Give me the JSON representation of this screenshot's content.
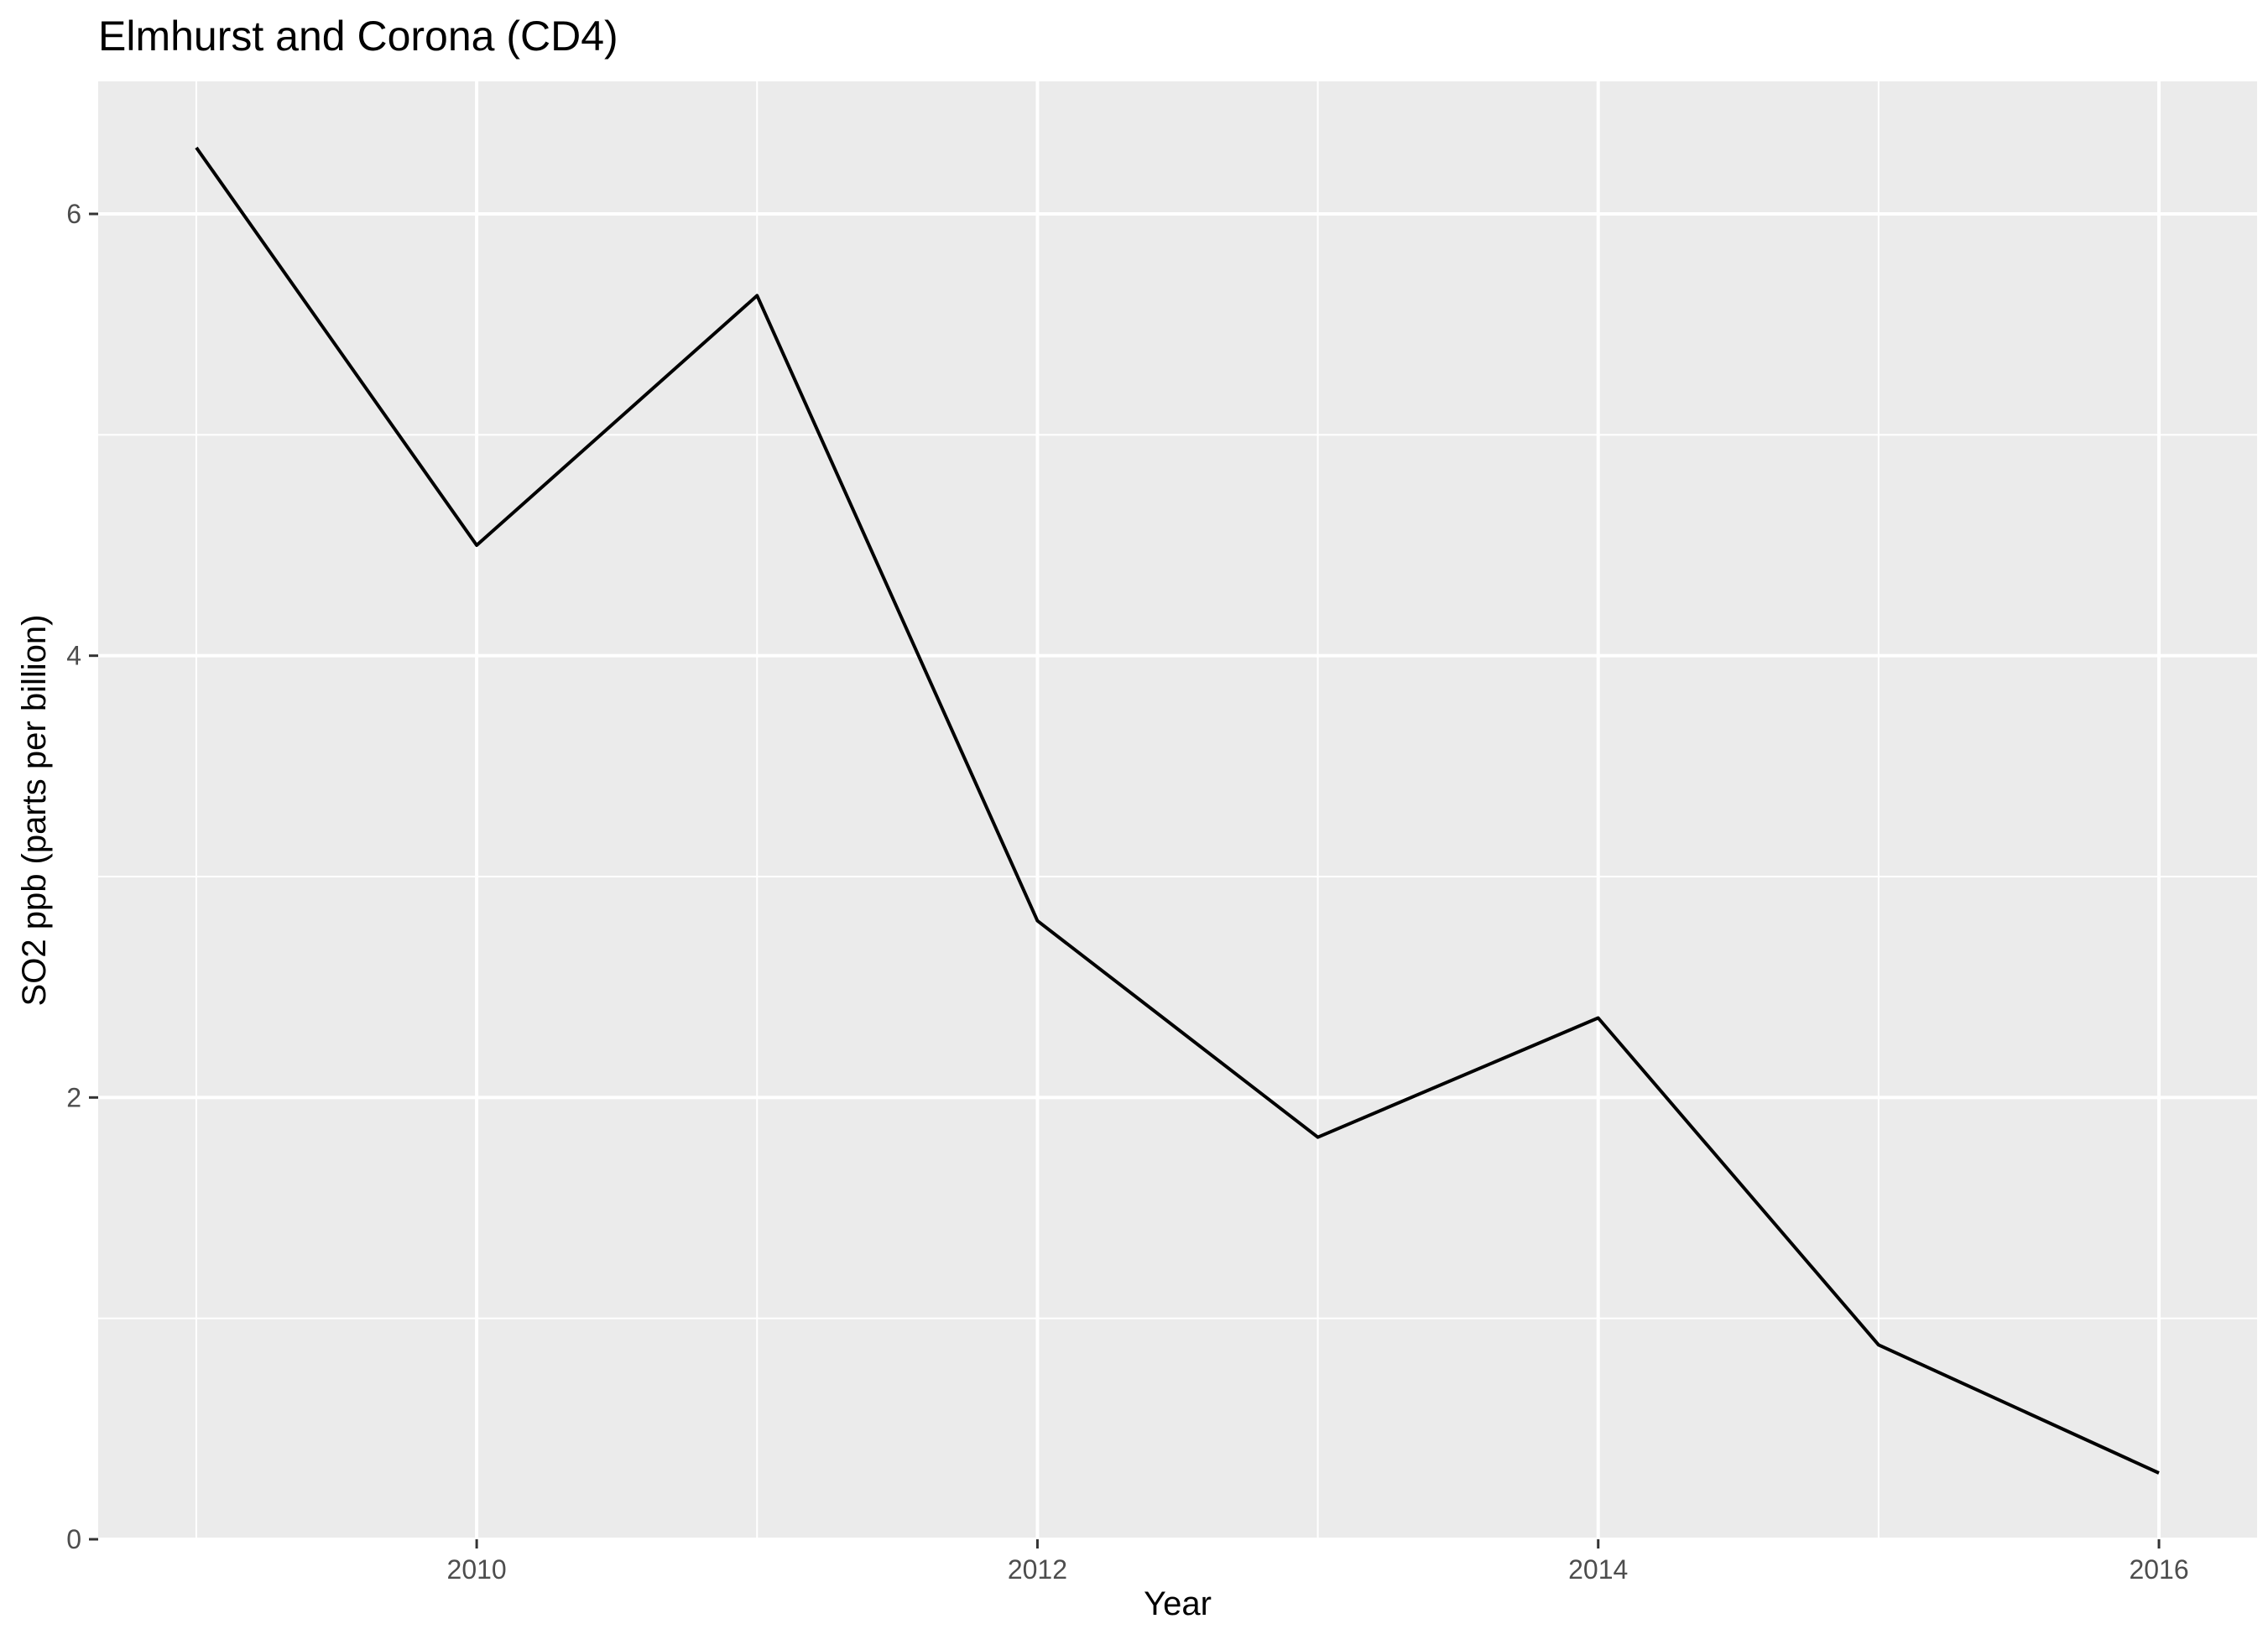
{
  "chart_data": {
    "type": "line",
    "title": "Elmhurst and Corona (CD4)",
    "xlabel": "Year",
    "ylabel": "SO2 ppb (parts per billion)",
    "x": [
      2009,
      2010,
      2011,
      2012,
      2013,
      2014,
      2015,
      2016
    ],
    "series": [
      {
        "name": "",
        "values": [
          6.3,
          4.5,
          5.63,
          2.8,
          1.82,
          2.36,
          0.88,
          0.3
        ]
      }
    ],
    "xlim": [
      2008.65,
      2016.35
    ],
    "ylim": [
      0,
      6.6
    ],
    "x_ticks": [
      2010,
      2012,
      2014,
      2016
    ],
    "x_tick_labels": [
      "2010",
      "2012",
      "2014",
      "2016"
    ],
    "y_ticks": [
      0,
      2,
      4,
      6
    ],
    "y_tick_labels": [
      "0",
      "2",
      "4",
      "6"
    ],
    "x_minor_ticks": [
      2009,
      2011,
      2013,
      2015
    ],
    "y_minor_ticks": [
      1,
      3,
      5
    ],
    "grid": true,
    "legend": "none",
    "colors": {
      "panel_background": "#EBEBEB",
      "grid_major": "#FFFFFF",
      "grid_minor": "#FFFFFF",
      "line": "#000000",
      "tick_label": "#4D4D4D",
      "tick_mark": "#333333"
    }
  }
}
